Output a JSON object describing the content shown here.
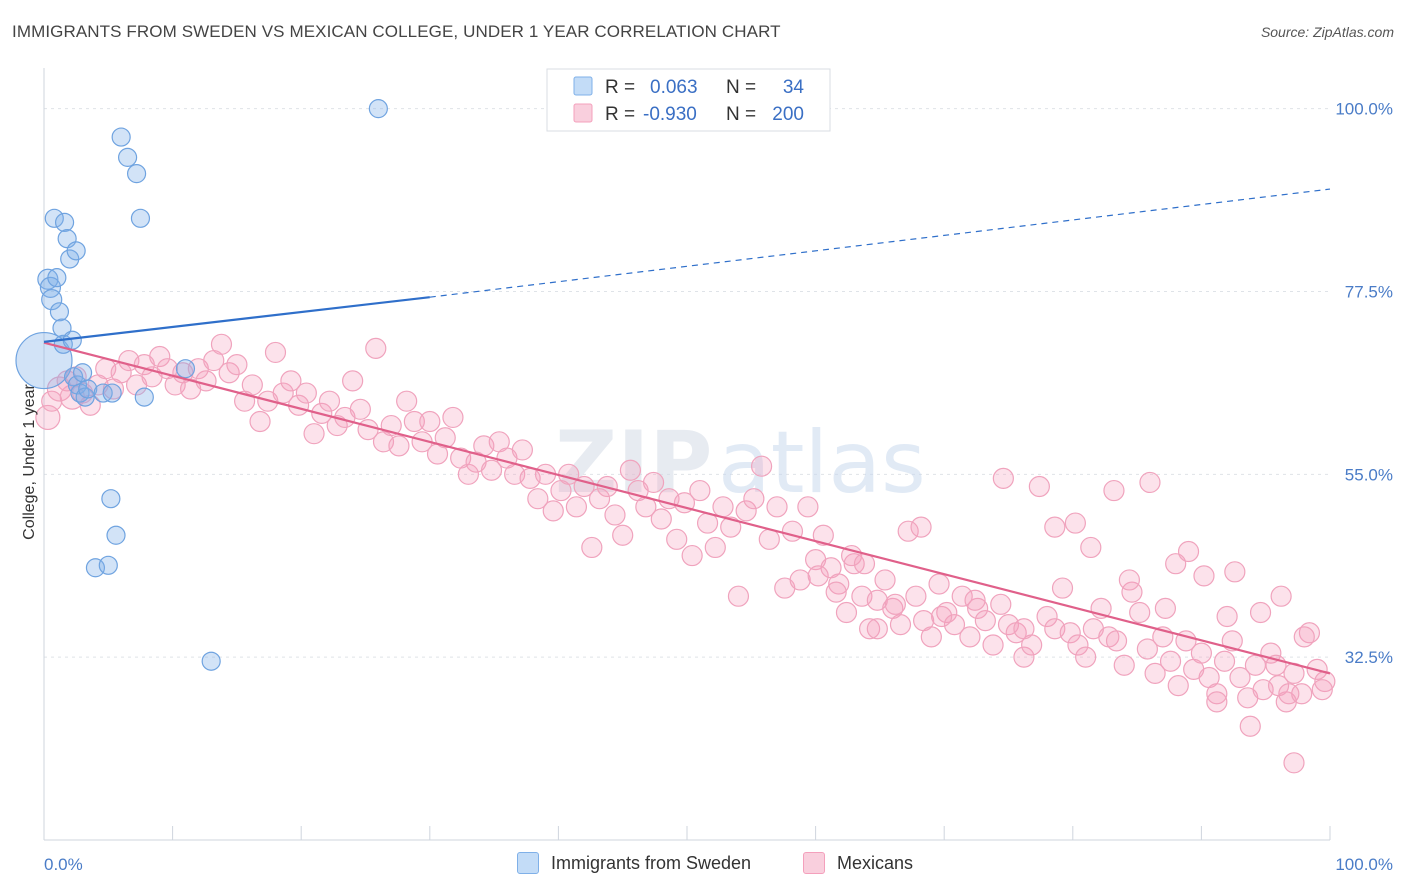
{
  "title": "IMMIGRANTS FROM SWEDEN VS MEXICAN COLLEGE, UNDER 1 YEAR CORRELATION CHART",
  "source": "Source: ZipAtlas.com",
  "watermark": {
    "zip": "ZIP",
    "atlas": "atlas"
  },
  "legend_top": {
    "rows": [
      {
        "r_label": "R =",
        "r_value": "0.063",
        "n_label": "N =",
        "n_value": "34",
        "color": "#7fb0e8"
      },
      {
        "r_label": "R =",
        "r_value": "-0.930",
        "n_label": "N =",
        "n_value": "200",
        "color": "#f4a0bc"
      }
    ]
  },
  "legend_bottom": [
    {
      "label": "Immigrants from Sweden",
      "color": "#7fb0e8"
    },
    {
      "label": "Mexicans",
      "color": "#f4a0bc"
    }
  ],
  "chart_data": {
    "type": "scatter",
    "title": "IMMIGRANTS FROM SWEDEN VS MEXICAN COLLEGE, UNDER 1 YEAR CORRELATION CHART",
    "xlabel": "",
    "ylabel": "College, Under 1 year",
    "xlim": [
      0,
      100
    ],
    "ylim": [
      10,
      105
    ],
    "x_tick_labels": [
      "0.0%",
      "100.0%"
    ],
    "y_ticks": [
      32.5,
      55.0,
      77.5,
      100.0
    ],
    "y_tick_labels": [
      "32.5%",
      "55.0%",
      "77.5%",
      "100.0%"
    ],
    "grid": true,
    "legend_position": "top-center",
    "series": [
      {
        "name": "Immigrants from Sweden",
        "color": "#7fb0e8",
        "line_color": "#2f6fca",
        "trend": {
          "x": [
            0,
            30,
            100
          ],
          "y": [
            71.3,
            76.8,
            90.1
          ],
          "solid_until": 30
        },
        "points": [
          [
            0.0,
            69.0,
            28
          ],
          [
            0.3,
            79.0,
            10
          ],
          [
            0.5,
            78.0,
            10
          ],
          [
            0.6,
            76.5,
            10
          ],
          [
            0.8,
            86.5,
            9
          ],
          [
            1.0,
            79.2,
            9
          ],
          [
            1.2,
            75.0,
            9
          ],
          [
            1.4,
            73.0,
            9
          ],
          [
            1.5,
            71.0,
            9
          ],
          [
            1.6,
            86.0,
            9
          ],
          [
            1.8,
            84.0,
            9
          ],
          [
            2.0,
            81.5,
            9
          ],
          [
            2.2,
            71.5,
            9
          ],
          [
            2.3,
            67.0,
            9
          ],
          [
            2.5,
            82.5,
            9
          ],
          [
            2.6,
            66.0,
            9
          ],
          [
            2.8,
            65.0,
            9
          ],
          [
            3.0,
            67.5,
            9
          ],
          [
            3.2,
            64.5,
            9
          ],
          [
            3.4,
            65.5,
            9
          ],
          [
            4.0,
            43.5,
            9
          ],
          [
            4.6,
            65.0,
            9
          ],
          [
            5.0,
            43.8,
            9
          ],
          [
            5.2,
            52.0,
            9
          ],
          [
            5.3,
            65.0,
            9
          ],
          [
            5.6,
            47.5,
            9
          ],
          [
            6.0,
            96.5,
            9
          ],
          [
            6.5,
            94.0,
            9
          ],
          [
            7.2,
            92.0,
            9
          ],
          [
            7.5,
            86.5,
            9
          ],
          [
            7.8,
            64.5,
            9
          ],
          [
            11.0,
            68.0,
            9
          ],
          [
            13.0,
            32.0,
            9
          ],
          [
            26.0,
            100.0,
            9
          ]
        ]
      },
      {
        "name": "Mexicans",
        "color": "#f4a0bc",
        "line_color": "#e0608a",
        "trend": {
          "x": [
            0,
            100
          ],
          "y": [
            71.2,
            30.5
          ]
        },
        "points": [
          [
            0.3,
            62.0,
            12
          ],
          [
            0.6,
            64.0,
            10
          ],
          [
            1.2,
            65.5,
            12
          ],
          [
            1.8,
            66.5,
            10
          ],
          [
            2.2,
            64.5,
            12
          ],
          [
            2.5,
            67.0,
            10
          ],
          [
            3.0,
            65.0,
            10
          ],
          [
            3.6,
            63.5,
            10
          ],
          [
            4.2,
            66.0,
            10
          ],
          [
            4.8,
            68.0,
            10
          ],
          [
            5.4,
            65.5,
            10
          ],
          [
            6.0,
            67.5,
            10
          ],
          [
            6.6,
            69.0,
            10
          ],
          [
            7.2,
            66.0,
            10
          ],
          [
            7.8,
            68.5,
            10
          ],
          [
            8.4,
            67.0,
            10
          ],
          [
            9.0,
            69.5,
            10
          ],
          [
            9.6,
            68.0,
            10
          ],
          [
            10.2,
            66.0,
            10
          ],
          [
            10.8,
            67.5,
            10
          ],
          [
            11.4,
            65.5,
            10
          ],
          [
            12.0,
            68.0,
            10
          ],
          [
            12.6,
            66.5,
            10
          ],
          [
            13.2,
            69.0,
            10
          ],
          [
            13.8,
            71.0,
            10
          ],
          [
            14.4,
            67.5,
            10
          ],
          [
            15.0,
            68.5,
            10
          ],
          [
            15.6,
            64.0,
            10
          ],
          [
            16.2,
            66.0,
            10
          ],
          [
            16.8,
            61.5,
            10
          ],
          [
            17.4,
            64.0,
            10
          ],
          [
            18.0,
            70.0,
            10
          ],
          [
            18.6,
            65.0,
            10
          ],
          [
            19.2,
            66.5,
            10
          ],
          [
            19.8,
            63.5,
            10
          ],
          [
            20.4,
            65.0,
            10
          ],
          [
            21.0,
            60.0,
            10
          ],
          [
            21.6,
            62.5,
            10
          ],
          [
            22.2,
            64.0,
            10
          ],
          [
            22.8,
            61.0,
            10
          ],
          [
            23.4,
            62.0,
            10
          ],
          [
            24.0,
            66.5,
            10
          ],
          [
            24.6,
            63.0,
            10
          ],
          [
            25.2,
            60.5,
            10
          ],
          [
            25.8,
            70.5,
            10
          ],
          [
            26.4,
            59.0,
            10
          ],
          [
            27.0,
            61.0,
            10
          ],
          [
            27.6,
            58.5,
            10
          ],
          [
            28.2,
            64.0,
            10
          ],
          [
            28.8,
            61.5,
            10
          ],
          [
            29.4,
            59.0,
            10
          ],
          [
            30.0,
            61.5,
            10
          ],
          [
            30.6,
            57.5,
            10
          ],
          [
            31.2,
            59.5,
            10
          ],
          [
            31.8,
            62.0,
            10
          ],
          [
            32.4,
            57.0,
            10
          ],
          [
            33.0,
            55.0,
            10
          ],
          [
            33.6,
            56.5,
            10
          ],
          [
            34.2,
            58.5,
            10
          ],
          [
            34.8,
            55.5,
            10
          ],
          [
            35.4,
            59.0,
            10
          ],
          [
            36.0,
            57.0,
            10
          ],
          [
            36.6,
            55.0,
            10
          ],
          [
            37.2,
            58.0,
            10
          ],
          [
            37.8,
            54.5,
            10
          ],
          [
            38.4,
            52.0,
            10
          ],
          [
            39.0,
            55.0,
            10
          ],
          [
            39.6,
            50.5,
            10
          ],
          [
            40.2,
            53.0,
            10
          ],
          [
            40.8,
            55.0,
            10
          ],
          [
            41.4,
            51.0,
            10
          ],
          [
            42.0,
            53.5,
            10
          ],
          [
            42.6,
            46.0,
            10
          ],
          [
            43.2,
            52.0,
            10
          ],
          [
            43.8,
            53.5,
            10
          ],
          [
            44.4,
            50.0,
            10
          ],
          [
            45.0,
            47.5,
            10
          ],
          [
            45.6,
            55.5,
            10
          ],
          [
            46.2,
            53.0,
            10
          ],
          [
            46.8,
            51.0,
            10
          ],
          [
            47.4,
            54.0,
            10
          ],
          [
            48.0,
            49.5,
            10
          ],
          [
            48.6,
            52.0,
            10
          ],
          [
            49.2,
            47.0,
            10
          ],
          [
            49.8,
            51.5,
            10
          ],
          [
            50.4,
            45.0,
            10
          ],
          [
            51.0,
            53.0,
            10
          ],
          [
            51.6,
            49.0,
            10
          ],
          [
            52.2,
            46.0,
            10
          ],
          [
            52.8,
            51.0,
            10
          ],
          [
            53.4,
            48.5,
            10
          ],
          [
            54.0,
            40.0,
            10
          ],
          [
            54.6,
            50.5,
            10
          ],
          [
            55.2,
            52.0,
            10
          ],
          [
            55.8,
            56.0,
            10
          ],
          [
            56.4,
            47.0,
            10
          ],
          [
            57.0,
            51.0,
            10
          ],
          [
            57.6,
            41.0,
            10
          ],
          [
            58.2,
            48.0,
            10
          ],
          [
            58.8,
            42.0,
            10
          ],
          [
            59.4,
            51.0,
            10
          ],
          [
            60.0,
            44.5,
            10
          ],
          [
            60.6,
            47.5,
            10
          ],
          [
            61.2,
            43.5,
            10
          ],
          [
            61.8,
            41.5,
            10
          ],
          [
            62.4,
            38.0,
            10
          ],
          [
            63.0,
            44.0,
            10
          ],
          [
            63.6,
            40.0,
            10
          ],
          [
            64.2,
            36.0,
            10
          ],
          [
            64.8,
            39.5,
            10
          ],
          [
            65.4,
            42.0,
            10
          ],
          [
            66.0,
            38.5,
            10
          ],
          [
            66.6,
            36.5,
            10
          ],
          [
            67.2,
            48.0,
            10
          ],
          [
            67.8,
            40.0,
            10
          ],
          [
            68.4,
            37.0,
            10
          ],
          [
            69.0,
            35.0,
            10
          ],
          [
            69.6,
            41.5,
            10
          ],
          [
            70.2,
            38.0,
            10
          ],
          [
            70.8,
            36.5,
            10
          ],
          [
            71.4,
            40.0,
            10
          ],
          [
            72.0,
            35.0,
            10
          ],
          [
            72.6,
            38.5,
            10
          ],
          [
            73.2,
            37.0,
            10
          ],
          [
            73.8,
            34.0,
            10
          ],
          [
            74.4,
            39.0,
            10
          ],
          [
            75.0,
            36.5,
            10
          ],
          [
            75.6,
            35.5,
            10
          ],
          [
            76.2,
            32.5,
            10
          ],
          [
            76.8,
            34.0,
            10
          ],
          [
            77.4,
            53.5,
            10
          ],
          [
            78.0,
            37.5,
            10
          ],
          [
            78.6,
            36.0,
            10
          ],
          [
            79.2,
            41.0,
            10
          ],
          [
            79.8,
            35.5,
            10
          ],
          [
            80.4,
            34.0,
            10
          ],
          [
            81.0,
            32.5,
            10
          ],
          [
            81.6,
            36.0,
            10
          ],
          [
            82.2,
            38.5,
            10
          ],
          [
            82.8,
            35.0,
            10
          ],
          [
            83.4,
            34.5,
            10
          ],
          [
            84.0,
            31.5,
            10
          ],
          [
            84.6,
            40.5,
            10
          ],
          [
            85.2,
            38.0,
            10
          ],
          [
            85.8,
            33.5,
            10
          ],
          [
            86.4,
            30.5,
            10
          ],
          [
            87.0,
            35.0,
            10
          ],
          [
            87.6,
            32.0,
            10
          ],
          [
            88.2,
            29.0,
            10
          ],
          [
            88.8,
            34.5,
            10
          ],
          [
            89.4,
            31.0,
            10
          ],
          [
            90.0,
            33.0,
            10
          ],
          [
            90.6,
            30.0,
            10
          ],
          [
            91.2,
            28.0,
            10
          ],
          [
            91.8,
            32.0,
            10
          ],
          [
            92.4,
            34.5,
            10
          ],
          [
            93.0,
            30.0,
            10
          ],
          [
            93.6,
            27.5,
            10
          ],
          [
            94.2,
            31.5,
            10
          ],
          [
            94.8,
            28.5,
            10
          ],
          [
            95.4,
            33.0,
            10
          ],
          [
            96.0,
            29.0,
            10
          ],
          [
            96.6,
            27.0,
            10
          ],
          [
            97.2,
            30.5,
            10
          ],
          [
            97.8,
            28.0,
            10
          ],
          [
            98.4,
            35.5,
            10
          ],
          [
            99.0,
            31.0,
            10
          ],
          [
            99.6,
            29.5,
            10
          ],
          [
            74.6,
            54.5,
            10
          ],
          [
            80.2,
            49.0,
            10
          ],
          [
            83.2,
            53.0,
            10
          ],
          [
            86.0,
            54.0,
            10
          ],
          [
            88.0,
            44.0,
            10
          ],
          [
            90.2,
            42.5,
            10
          ],
          [
            92.6,
            43.0,
            10
          ],
          [
            94.6,
            38.0,
            10
          ],
          [
            96.2,
            40.0,
            10
          ],
          [
            98.0,
            35.0,
            10
          ],
          [
            96.8,
            28.0,
            10
          ],
          [
            93.8,
            24.0,
            10
          ],
          [
            91.2,
            27.0,
            10
          ],
          [
            97.2,
            19.5,
            10
          ],
          [
            64.8,
            36.0,
            10
          ],
          [
            66.2,
            39.0,
            10
          ],
          [
            69.8,
            37.5,
            10
          ],
          [
            60.2,
            42.5,
            10
          ],
          [
            61.6,
            40.5,
            10
          ],
          [
            62.8,
            45.0,
            10
          ],
          [
            63.8,
            44.0,
            10
          ],
          [
            68.2,
            48.5,
            10
          ],
          [
            72.4,
            39.5,
            10
          ],
          [
            76.2,
            36.0,
            10
          ],
          [
            78.6,
            48.5,
            10
          ],
          [
            81.4,
            46.0,
            10
          ],
          [
            84.4,
            42.0,
            10
          ],
          [
            87.2,
            38.5,
            10
          ],
          [
            89.0,
            45.5,
            10
          ],
          [
            92.0,
            37.5,
            10
          ],
          [
            95.8,
            31.5,
            10
          ],
          [
            99.4,
            28.5,
            10
          ]
        ]
      }
    ]
  }
}
